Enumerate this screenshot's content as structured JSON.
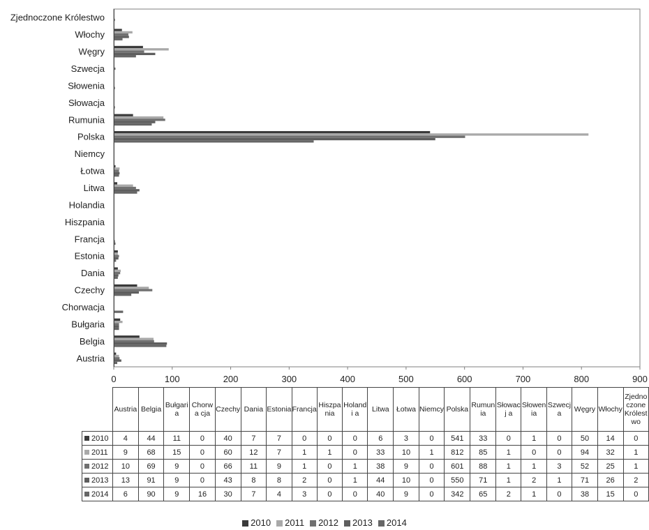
{
  "chart_data": {
    "type": "bar",
    "orientation": "horizontal",
    "xlim": [
      0,
      900
    ],
    "x_ticks": [
      "0",
      "100",
      "200",
      "300",
      "400",
      "500",
      "600",
      "700",
      "800",
      "900"
    ],
    "grid": false,
    "legend_position": "bottom",
    "categories": [
      "Austria",
      "Belgia",
      "Bułgaria",
      "Chorwacja",
      "Czechy",
      "Dania",
      "Estonia",
      "Francja",
      "Hiszpania",
      "Holandia",
      "Litwa",
      "Łotwa",
      "Niemcy",
      "Polska",
      "Rumunia",
      "Słowacja",
      "Słowenia",
      "Szwecja",
      "Węgry",
      "Włochy",
      "Zjednoczone Królestwo"
    ],
    "table_headers": [
      "Austria",
      "Belgia",
      "Bułgari a",
      "Chorwa cja",
      "Czechy",
      "Dania",
      "Estonia",
      "Francja",
      "Hiszpa nia",
      "Holandi a",
      "Litwa",
      "Łotwa",
      "Niemcy",
      "Polska",
      "Rumun ia",
      "Słowacj a",
      "Słowen ia",
      "Szwecj a",
      "Węgry",
      "Włochy",
      "Zjedno czone Królest wo"
    ],
    "series": [
      {
        "name": "2010",
        "color": "#3a3a3a",
        "values": [
          4,
          44,
          11,
          0,
          40,
          7,
          7,
          0,
          0,
          0,
          6,
          3,
          0,
          541,
          33,
          0,
          1,
          0,
          50,
          14,
          0
        ]
      },
      {
        "name": "2011",
        "color": "#a9a9a9",
        "values": [
          9,
          68,
          15,
          0,
          60,
          12,
          7,
          1,
          1,
          0,
          33,
          10,
          1,
          812,
          85,
          1,
          0,
          0,
          94,
          32,
          1
        ]
      },
      {
        "name": "2012",
        "color": "#707070",
        "values": [
          10,
          69,
          9,
          0,
          66,
          11,
          9,
          1,
          0,
          1,
          38,
          9,
          0,
          601,
          88,
          1,
          1,
          3,
          52,
          25,
          1
        ]
      },
      {
        "name": "2013",
        "color": "#5e5e5e",
        "values": [
          13,
          91,
          9,
          0,
          43,
          8,
          8,
          2,
          0,
          1,
          44,
          10,
          0,
          550,
          71,
          1,
          2,
          1,
          71,
          26,
          2
        ]
      },
      {
        "name": "2014",
        "color": "#666666",
        "values": [
          6,
          90,
          9,
          16,
          30,
          7,
          4,
          3,
          0,
          0,
          40,
          9,
          0,
          342,
          65,
          2,
          1,
          0,
          38,
          15,
          0
        ]
      }
    ]
  }
}
